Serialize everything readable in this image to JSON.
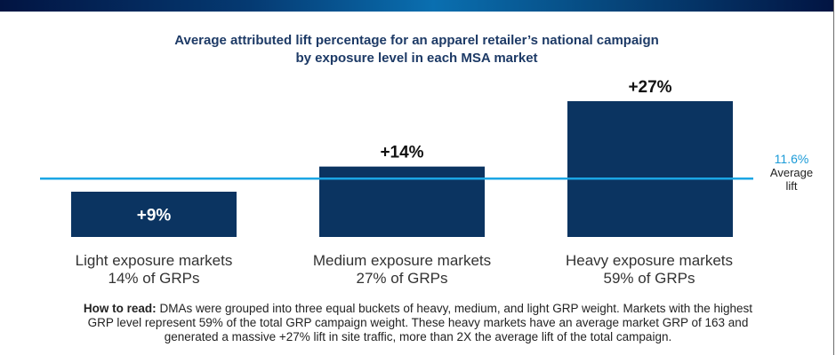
{
  "header": {
    "title_cut": ""
  },
  "chart_data": {
    "type": "bar",
    "title": "Average attributed lift percentage for an apparel retailer’s national campaign",
    "subtitle": "by exposure level in each MSA market",
    "categories": [
      "Light exposure markets",
      "Medium exposure markets",
      "Heavy exposure markets"
    ],
    "category_sublabels": [
      "14% of GRPs",
      "27% of GRPs",
      "59% of GRPs"
    ],
    "values": [
      9,
      14,
      27
    ],
    "data_labels": [
      "+9%",
      "+14%",
      "+27%"
    ],
    "unit": "%",
    "reference_line": {
      "value": 11.6,
      "label_value": "11.6%",
      "label_line1": "Average",
      "label_line2": "lift",
      "color": "#1ba6e4"
    },
    "bar_color": "#0b3461",
    "xlabel": "",
    "ylabel": "",
    "ylim": [
      0,
      30
    ],
    "grid": false,
    "legend": "none"
  },
  "footnote": {
    "lead": "How to read:",
    "lines": [
      "DMAs were grouped into three equal buckets of heavy, medium, and light GRP weight. Markets with the highest",
      "GRP level represent 59% of the total GRP campaign weight. These heavy markets have an average market GRP of 163 and",
      "generated a massive +27% lift in site traffic, more than 2X the average lift of the total campaign."
    ]
  }
}
